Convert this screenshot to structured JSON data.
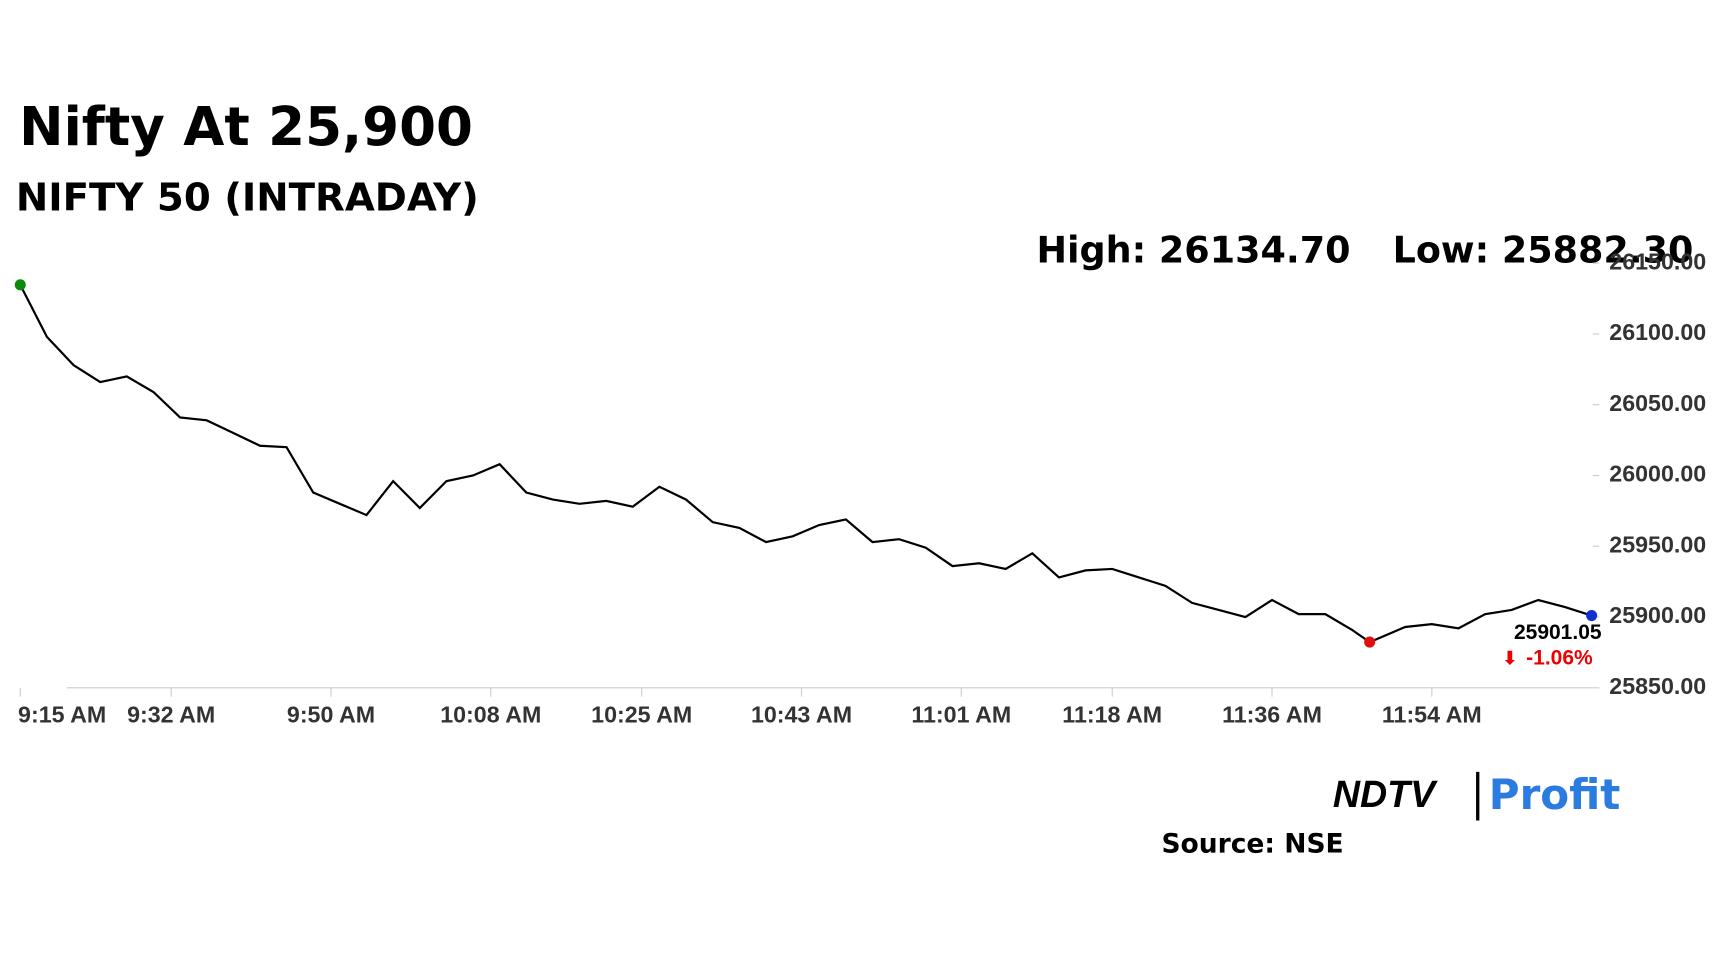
{
  "chart_data": {
    "type": "line",
    "title": "Nifty At 25,900",
    "subtitle": "NIFTY 50 (INTRADAY)",
    "high_label": "High: 26134.70",
    "low_label": "Low: 25882.30",
    "last_label": "25901.05",
    "change_label": "-1.06%",
    "source": "Source: NSE",
    "logo_left": "NDTV",
    "logo_right": "Profit",
    "x": [
      "9:15 AM",
      "9:18 AM",
      "9:21 AM",
      "9:24 AM",
      "9:27 AM",
      "9:30 AM",
      "9:33 AM",
      "9:36 AM",
      "9:39 AM",
      "9:42 AM",
      "9:45 AM",
      "9:48 AM",
      "9:51 AM",
      "9:54 AM",
      "9:57 AM",
      "10:00 AM",
      "10:03 AM",
      "10:06 AM",
      "10:09 AM",
      "10:12 AM",
      "10:15 AM",
      "10:18 AM",
      "10:21 AM",
      "10:24 AM",
      "10:27 AM",
      "10:30 AM",
      "10:33 AM",
      "10:36 AM",
      "10:39 AM",
      "10:42 AM",
      "10:45 AM",
      "10:48 AM",
      "10:51 AM",
      "10:54 AM",
      "10:57 AM",
      "11:00 AM",
      "11:03 AM",
      "11:06 AM",
      "11:09 AM",
      "11:12 AM",
      "11:15 AM",
      "11:18 AM",
      "11:21 AM",
      "11:24 AM",
      "11:27 AM",
      "11:30 AM",
      "11:33 AM",
      "11:36 AM",
      "11:39 AM",
      "11:42 AM",
      "11:45 AM",
      "11:47 AM",
      "11:51 AM",
      "11:54 AM",
      "11:57 AM",
      "12:00 PM",
      "12:03 PM",
      "12:06 PM",
      "12:09 PM",
      "12:12 PM"
    ],
    "series": [
      {
        "name": "NIFTY 50",
        "color": "#000000",
        "values": [
          26134.7,
          26098,
          26078,
          26066,
          26070,
          26059,
          26041,
          26039,
          26030,
          26021,
          26020,
          25988,
          25980,
          25972,
          25996,
          25977,
          25996,
          26000,
          26008,
          25988,
          25983,
          25980,
          25982,
          25978,
          25992,
          25983,
          25967,
          25963,
          25953,
          25957,
          25965,
          25969,
          25953,
          25955,
          25949,
          25936,
          25938,
          25934,
          25945,
          25928,
          25933,
          25934,
          25928,
          25922,
          25910,
          25905,
          25900,
          25912,
          25902,
          25902,
          25891,
          25882.3,
          25893,
          25895,
          25892,
          25902,
          25905,
          25912,
          25907,
          25901.05
        ]
      }
    ],
    "xticks": [
      "9:15 AM",
      "9:32 AM",
      "9:50 AM",
      "10:08 AM",
      "10:25 AM",
      "10:43 AM",
      "11:01 AM",
      "11:18 AM",
      "11:36 AM",
      "11:54 AM"
    ],
    "ylim": [
      25850,
      26150
    ],
    "yticks": [
      {
        "value": 25850,
        "label": "25850.00"
      },
      {
        "value": 25900,
        "label": "25900.00"
      },
      {
        "value": 25950,
        "label": "25950.00"
      },
      {
        "value": 26000,
        "label": "26000.00"
      },
      {
        "value": 26050,
        "label": "26050.00"
      },
      {
        "value": 26100,
        "label": "26100.00"
      },
      {
        "value": 26150,
        "label": "26150.00"
      }
    ]
  }
}
